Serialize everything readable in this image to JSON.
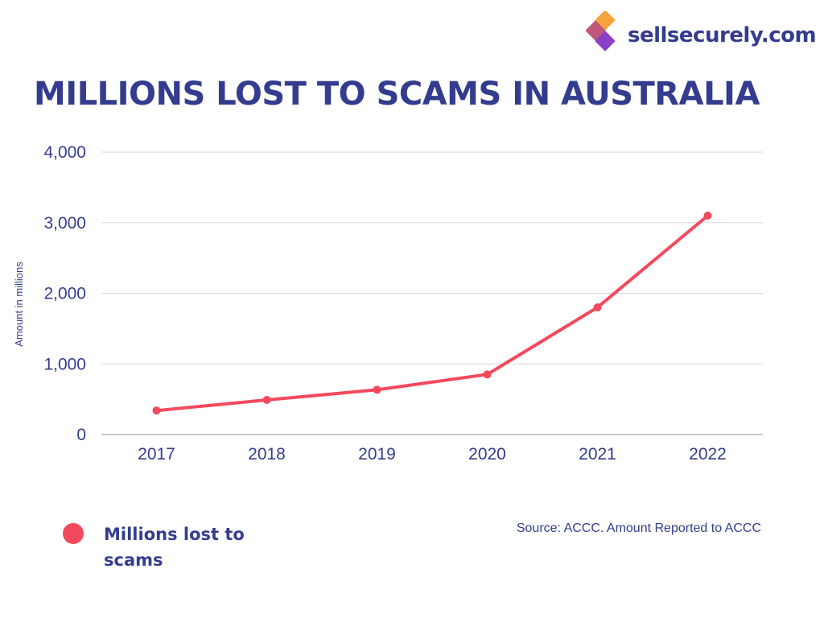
{
  "brand": {
    "name": "sellsecurely.com"
  },
  "title": "MILLIONS LOST TO SCAMS IN AUSTRALIA",
  "source": "Source: ACCC. Amount Reported to ACCC",
  "legend": {
    "label": "Millions lost to scams",
    "color": "#f4495d"
  },
  "colors": {
    "text": "#343c8f",
    "line": "#f4495d",
    "grid": "#d9d9d9"
  },
  "chart_data": {
    "type": "line",
    "categories": [
      "2017",
      "2018",
      "2019",
      "2020",
      "2021",
      "2022"
    ],
    "series": [
      {
        "name": "Millions lost to scams",
        "values": [
          340,
          490,
          634,
          851,
          1800,
          3100
        ]
      }
    ],
    "ylabel": "Amount in millions",
    "xlabel": "",
    "ylim": [
      0,
      4000
    ],
    "yticks": [
      "0",
      "1,000",
      "2,000",
      "3,000",
      "4,000"
    ],
    "grid": true,
    "legend_position": "bottom-left"
  }
}
